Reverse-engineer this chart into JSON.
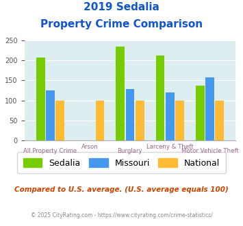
{
  "title_line1": "2019 Sedalia",
  "title_line2": "Property Crime Comparison",
  "categories": [
    "All Property Crime",
    "Arson",
    "Burglary",
    "Larceny & Theft",
    "Motor Vehicle Theft"
  ],
  "sedalia": [
    208,
    null,
    235,
    213,
    137
  ],
  "missouri": [
    125,
    null,
    128,
    120,
    157
  ],
  "national": [
    100,
    100,
    100,
    100,
    100
  ],
  "color_sedalia": "#77cc00",
  "color_missouri": "#4499ee",
  "color_national": "#ffbb33",
  "bg_color": "#ddeef0",
  "ylim": [
    0,
    250
  ],
  "yticks": [
    0,
    50,
    100,
    150,
    200,
    250
  ],
  "footnote": "Compared to U.S. average. (U.S. average equals 100)",
  "copyright": "© 2025 CityRating.com - https://www.cityrating.com/crime-statistics/",
  "title_color": "#1155cc",
  "axis_label_color": "#996688",
  "footnote_color": "#cc4400",
  "copyright_color": "#888888"
}
